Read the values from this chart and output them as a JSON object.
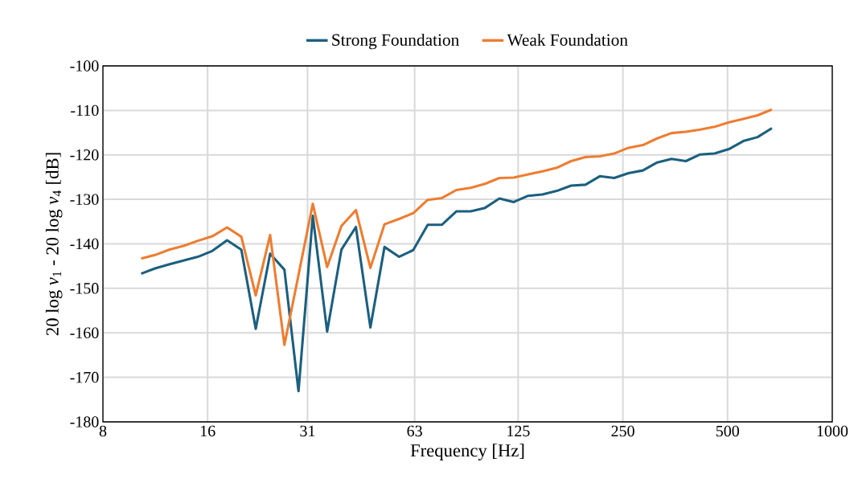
{
  "chart_data": {
    "type": "line",
    "xlabel": "Frequency [Hz]",
    "ylabel": "20 log *v*$_{1}$ - 20 log *v*$_{4}$  [dB]",
    "log": "x",
    "grid": true,
    "legend": "top",
    "marker": "none",
    "line_style": "solid",
    "xlim": [
      8,
      1000
    ],
    "xticks": [
      8,
      16,
      31,
      63,
      125,
      250,
      500,
      1000
    ],
    "ylim": [
      -180,
      -100
    ],
    "yticks": [
      -180,
      -170,
      -160,
      -150,
      -140,
      -130,
      -120,
      -110,
      -100
    ],
    "x": [
      10.3,
      11.3,
      12.4,
      13.7,
      15.0,
      16.5,
      18.2,
      20.0,
      22.0,
      24.2,
      26.6,
      29.2,
      32.1,
      35.3,
      38.8,
      42.7,
      47.0,
      51.6,
      56.8,
      62.4,
      68.7,
      75.5,
      83.0,
      91.3,
      100.4,
      110.4,
      121.4,
      133.5,
      146.8,
      161.4,
      177.5,
      195.2,
      214.6,
      236,
      259.5,
      285.4,
      313.8,
      345,
      379.4,
      417.2,
      458.8,
      504.5,
      554.8,
      610,
      670.8
    ],
    "series": [
      {
        "name": "Strong Foundation",
        "color": "#1b5f7f",
        "values": [
          -146.7,
          -145.5,
          -144.6,
          -143.7,
          -142.9,
          -141.6,
          -139.2,
          -141.3,
          -159.1,
          -142.2,
          -145.8,
          -173.1,
          -133.7,
          -159.7,
          -141.3,
          -136.2,
          -158.8,
          -140.7,
          -142.9,
          -141.4,
          -135.7,
          -135.7,
          -132.7,
          -132.7,
          -131.9,
          -129.8,
          -130.6,
          -129.2,
          -128.9,
          -128.1,
          -126.9,
          -126.7,
          -124.8,
          -125.2,
          -124.1,
          -123.5,
          -121.7,
          -120.9,
          -121.4,
          -119.9,
          -119.7,
          -118.7,
          -116.9,
          -116.0,
          -114.0
        ]
      },
      {
        "name": "Weak Foundation",
        "color": "#ed7d31",
        "values": [
          -143.3,
          -142.5,
          -141.3,
          -140.4,
          -139.3,
          -138.3,
          -136.3,
          -138.4,
          -151.6,
          -138.0,
          -162.7,
          -147.0,
          -131.0,
          -145.2,
          -136.0,
          -132.4,
          -145.4,
          -135.6,
          -134.4,
          -133.1,
          -130.1,
          -129.7,
          -127.9,
          -127.4,
          -126.5,
          -125.2,
          -125.1,
          -124.4,
          -123.7,
          -122.9,
          -121.4,
          -120.5,
          -120.3,
          -119.7,
          -118.4,
          -117.8,
          -116.3,
          -115.1,
          -114.8,
          -114.3,
          -113.7,
          -112.7,
          -111.9,
          -111.1,
          -109.8
        ]
      }
    ]
  }
}
